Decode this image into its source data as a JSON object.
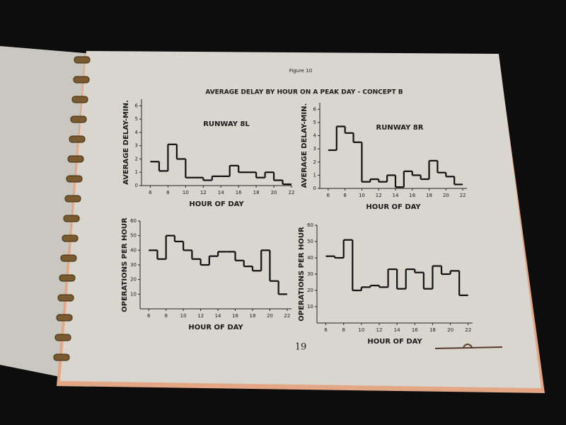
{
  "figure_label": "Figure 10",
  "figure_title": "AVERAGE DELAY BY HOUR ON A PEAK DAY - CONCEPT B",
  "page_number": "19",
  "chart_data": [
    {
      "type": "step",
      "title": "RUNWAY 8L",
      "xlabel": "HOUR OF DAY",
      "ylabel": "AVERAGE DELAY-MIN.",
      "color": "#111111",
      "x": [
        6,
        7,
        8,
        9,
        10,
        11,
        12,
        13,
        14,
        15,
        16,
        17,
        18,
        19,
        20,
        21
      ],
      "values": [
        1.8,
        1.1,
        3.1,
        2.0,
        0.6,
        0.6,
        0.4,
        0.7,
        0.7,
        1.5,
        1.0,
        1.0,
        0.6,
        1.0,
        0.4,
        0.1
      ],
      "xlim": [
        5,
        22
      ],
      "ylim": [
        0,
        6.5
      ],
      "xticks": [
        6,
        8,
        10,
        12,
        14,
        16,
        18,
        20,
        22
      ],
      "yticks": [
        0,
        1,
        2,
        3,
        4,
        5,
        6
      ]
    },
    {
      "type": "step",
      "title": "RUNWAY 8R",
      "xlabel": "HOUR OF DAY",
      "ylabel": "AVERAGE DELAY-MIN.",
      "color": "#111111",
      "x": [
        6,
        7,
        8,
        9,
        10,
        11,
        12,
        13,
        14,
        15,
        16,
        17,
        18,
        19,
        20,
        21
      ],
      "values": [
        2.9,
        4.7,
        4.2,
        3.5,
        0.5,
        0.7,
        0.5,
        1.0,
        0.1,
        1.3,
        1.0,
        0.7,
        2.1,
        1.2,
        0.9,
        0.3
      ],
      "xlim": [
        5,
        22.5
      ],
      "ylim": [
        0,
        6.5
      ],
      "xticks": [
        6,
        8,
        10,
        12,
        14,
        16,
        18,
        20,
        22
      ],
      "yticks": [
        0,
        1,
        2,
        3,
        4,
        5,
        6
      ]
    },
    {
      "type": "step",
      "xlabel": "HOUR OF DAY",
      "ylabel": "OPERATIONS PER HOUR",
      "color": "#111111",
      "x": [
        6,
        7,
        8,
        9,
        10,
        11,
        12,
        13,
        14,
        15,
        16,
        17,
        18,
        19,
        20,
        21
      ],
      "values": [
        40,
        34,
        50,
        46,
        40,
        34,
        30,
        36,
        39,
        39,
        33,
        29,
        26,
        40,
        19,
        10
      ],
      "xlim": [
        5,
        22.5
      ],
      "ylim": [
        0,
        60
      ],
      "xticks": [
        6,
        8,
        10,
        12,
        14,
        16,
        18,
        20,
        22
      ],
      "yticks": [
        10,
        20,
        30,
        40,
        50,
        60
      ]
    },
    {
      "type": "step",
      "xlabel": "HOUR OF DAY",
      "ylabel": "OPERATIONS PER HOUR",
      "color": "#111111",
      "x": [
        6,
        7,
        8,
        9,
        10,
        11,
        12,
        13,
        14,
        15,
        16,
        17,
        18,
        19,
        20,
        21
      ],
      "values": [
        41,
        40,
        51,
        20,
        22,
        23,
        22,
        33,
        21,
        33,
        31,
        21,
        35,
        30,
        32,
        17
      ],
      "xlim": [
        5,
        22.5
      ],
      "ylim": [
        0,
        60
      ],
      "xticks": [
        6,
        8,
        10,
        12,
        14,
        16,
        18,
        20,
        22
      ],
      "yticks": [
        10,
        20,
        30,
        40,
        50,
        60
      ]
    }
  ]
}
